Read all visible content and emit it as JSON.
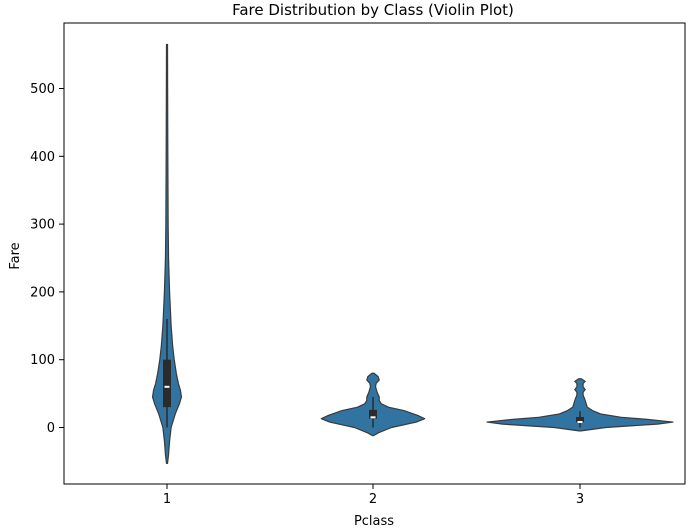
{
  "chart_data": {
    "type": "violin",
    "title": "Fare Distribution by Class (Violin Plot)",
    "xlabel": "Pclass",
    "ylabel": "Fare",
    "categories": [
      "1",
      "2",
      "3"
    ],
    "ylim": [
      -82,
      590
    ],
    "yticks": [
      0,
      100,
      200,
      300,
      400,
      500
    ],
    "grid": false,
    "colors": {
      "fill": "#3274a1",
      "edge": "#3a3a3a",
      "box": "#2b2b2b",
      "median": "#ffffff"
    },
    "series": [
      {
        "category": "1",
        "range": [
          -53,
          565
        ],
        "box": {
          "q1": 30,
          "median": 60,
          "q3": 100,
          "whisker_low": 0,
          "whisker_high": 160
        },
        "density": [
          [
            -53,
            0.5
          ],
          [
            -40,
            1.5
          ],
          [
            -20,
            2.5
          ],
          [
            0,
            4
          ],
          [
            20,
            8
          ],
          [
            35,
            12
          ],
          [
            45,
            14
          ],
          [
            55,
            13
          ],
          [
            65,
            11
          ],
          [
            80,
            9
          ],
          [
            100,
            7
          ],
          [
            120,
            5.5
          ],
          [
            150,
            4
          ],
          [
            200,
            2.5
          ],
          [
            250,
            1.5
          ],
          [
            300,
            1.1
          ],
          [
            400,
            0.8
          ],
          [
            500,
            0.6
          ],
          [
            565,
            0.5
          ]
        ]
      },
      {
        "category": "2",
        "range": [
          -12,
          80
        ],
        "box": {
          "q1": 13,
          "median": 15,
          "q3": 26,
          "whisker_low": 0,
          "whisker_high": 45
        },
        "density": [
          [
            -12,
            0.5
          ],
          [
            -8,
            5
          ],
          [
            0,
            18
          ],
          [
            8,
            42
          ],
          [
            13,
            50
          ],
          [
            18,
            43
          ],
          [
            25,
            30
          ],
          [
            30,
            15
          ],
          [
            35,
            8
          ],
          [
            40,
            6
          ],
          [
            45,
            6
          ],
          [
            52,
            4
          ],
          [
            60,
            2.5
          ],
          [
            65,
            3
          ],
          [
            70,
            6
          ],
          [
            75,
            5
          ],
          [
            80,
            1
          ]
        ]
      },
      {
        "category": "3",
        "range": [
          -5,
          72
        ],
        "box": {
          "q1": 7.8,
          "median": 8.1,
          "q3": 15.5,
          "whisker_low": 0,
          "whisker_high": 24
        },
        "density": [
          [
            -5,
            1
          ],
          [
            0,
            25
          ],
          [
            5,
            75
          ],
          [
            8,
            90
          ],
          [
            12,
            65
          ],
          [
            15,
            40
          ],
          [
            20,
            20
          ],
          [
            25,
            12
          ],
          [
            30,
            7
          ],
          [
            35,
            6
          ],
          [
            40,
            5
          ],
          [
            48,
            3
          ],
          [
            52,
            3
          ],
          [
            56,
            5
          ],
          [
            60,
            3
          ],
          [
            65,
            3
          ],
          [
            68,
            5
          ],
          [
            72,
            1
          ]
        ]
      }
    ]
  }
}
